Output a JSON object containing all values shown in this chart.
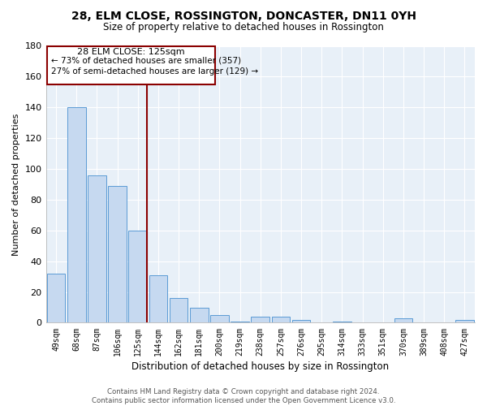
{
  "title": "28, ELM CLOSE, ROSSINGTON, DONCASTER, DN11 0YH",
  "subtitle": "Size of property relative to detached houses in Rossington",
  "xlabel": "Distribution of detached houses by size in Rossington",
  "ylabel": "Number of detached properties",
  "categories": [
    "49sqm",
    "68sqm",
    "87sqm",
    "106sqm",
    "125sqm",
    "144sqm",
    "162sqm",
    "181sqm",
    "200sqm",
    "219sqm",
    "238sqm",
    "257sqm",
    "276sqm",
    "295sqm",
    "314sqm",
    "333sqm",
    "351sqm",
    "370sqm",
    "389sqm",
    "408sqm",
    "427sqm"
  ],
  "values": [
    32,
    140,
    96,
    89,
    60,
    31,
    16,
    10,
    5,
    1,
    4,
    4,
    2,
    0,
    1,
    0,
    0,
    3,
    0,
    0,
    2
  ],
  "bar_color": "#c6d9f0",
  "bar_edge_color": "#5b9bd5",
  "highlight_bar_index": 4,
  "highlight_line_color": "#8b0000",
  "ylim": [
    0,
    180
  ],
  "yticks": [
    0,
    20,
    40,
    60,
    80,
    100,
    120,
    140,
    160,
    180
  ],
  "annotation_title": "28 ELM CLOSE: 125sqm",
  "annotation_line1": "← 73% of detached houses are smaller (357)",
  "annotation_line2": "27% of semi-detached houses are larger (129) →",
  "footer_line1": "Contains HM Land Registry data © Crown copyright and database right 2024.",
  "footer_line2": "Contains public sector information licensed under the Open Government Licence v3.0.",
  "background_color": "#ffffff",
  "plot_bg_color": "#e8f0f8",
  "grid_color": "#ffffff"
}
